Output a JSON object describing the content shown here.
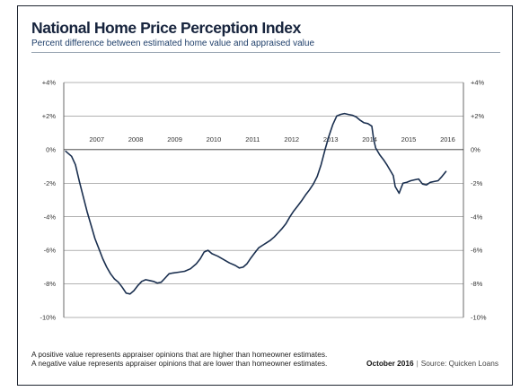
{
  "title": "National Home Price Perception Index",
  "subtitle": "Percent difference between estimated home value and appraised value",
  "footnote": {
    "line1": "A positive value represents appraiser opinions that are higher than homeowner estimates.",
    "line2": "A negative value represents appraiser opinions that are lower than homeowner estimates."
  },
  "credit": {
    "date": "October 2016",
    "separator": "|",
    "source": "Source: Quicken Loans"
  },
  "colors": {
    "line": "#1a2f4f",
    "title": "#17243d",
    "subtitle": "#1f3f6a",
    "grid": "#555555"
  },
  "chart_data": {
    "type": "line",
    "title": "National Home Price Perception Index",
    "subtitle": "Percent difference between estimated home value and appraised value",
    "xlabel": "",
    "ylabel": "",
    "xlim": [
      2006.5,
      2016.75
    ],
    "ylim": [
      -10,
      4
    ],
    "y_ticks": [
      4,
      2,
      0,
      -2,
      -4,
      -6,
      -8,
      -10
    ],
    "y_tick_labels": [
      "+4%",
      "+2%",
      "0%",
      "-2%",
      "-4%",
      "-6%",
      "-8%",
      "-10%"
    ],
    "x_tick_labels": [
      {
        "label": "2007",
        "x": 2007
      },
      {
        "label": "2008",
        "x": 2008
      },
      {
        "label": "2009",
        "x": 2009
      },
      {
        "label": "2010",
        "x": 2010
      },
      {
        "label": "2011",
        "x": 2011
      },
      {
        "label": "2012",
        "x": 2012
      },
      {
        "label": "2013",
        "x": 2013
      },
      {
        "label": "2014",
        "x": 2014
      },
      {
        "label": "2015",
        "x": 2015
      },
      {
        "label": "2016",
        "x": 2016
      }
    ],
    "grid": "horizontal",
    "legend": "none",
    "series": [
      {
        "points": [
          [
            2006.55,
            -0.1
          ],
          [
            2006.7,
            -0.4
          ],
          [
            2006.8,
            -0.9
          ],
          [
            2006.9,
            -1.9
          ],
          [
            2007.0,
            -2.8
          ],
          [
            2007.1,
            -3.7
          ],
          [
            2007.2,
            -4.5
          ],
          [
            2007.3,
            -5.3
          ],
          [
            2007.4,
            -5.9
          ],
          [
            2007.5,
            -6.5
          ],
          [
            2007.6,
            -7.0
          ],
          [
            2007.7,
            -7.4
          ],
          [
            2007.8,
            -7.7
          ],
          [
            2007.9,
            -7.9
          ],
          [
            2008.0,
            -8.2
          ],
          [
            2008.1,
            -8.55
          ],
          [
            2008.2,
            -8.6
          ],
          [
            2008.3,
            -8.4
          ],
          [
            2008.4,
            -8.1
          ],
          [
            2008.5,
            -7.85
          ],
          [
            2008.6,
            -7.75
          ],
          [
            2008.7,
            -7.8
          ],
          [
            2008.8,
            -7.85
          ],
          [
            2008.9,
            -7.95
          ],
          [
            2009.0,
            -7.9
          ],
          [
            2009.1,
            -7.65
          ],
          [
            2009.2,
            -7.4
          ],
          [
            2009.3,
            -7.35
          ],
          [
            2009.45,
            -7.3
          ],
          [
            2009.6,
            -7.25
          ],
          [
            2009.75,
            -7.1
          ],
          [
            2009.9,
            -6.8
          ],
          [
            2010.0,
            -6.5
          ],
          [
            2010.1,
            -6.1
          ],
          [
            2010.2,
            -6.0
          ],
          [
            2010.3,
            -6.2
          ],
          [
            2010.45,
            -6.35
          ],
          [
            2010.6,
            -6.55
          ],
          [
            2010.75,
            -6.75
          ],
          [
            2010.9,
            -6.9
          ],
          [
            2011.0,
            -7.05
          ],
          [
            2011.1,
            -7.0
          ],
          [
            2011.2,
            -6.8
          ],
          [
            2011.3,
            -6.45
          ],
          [
            2011.4,
            -6.15
          ],
          [
            2011.5,
            -5.85
          ],
          [
            2011.6,
            -5.7
          ],
          [
            2011.7,
            -5.55
          ],
          [
            2011.8,
            -5.4
          ],
          [
            2011.9,
            -5.2
          ],
          [
            2012.0,
            -4.95
          ],
          [
            2012.1,
            -4.7
          ],
          [
            2012.2,
            -4.4
          ],
          [
            2012.3,
            -4.0
          ],
          [
            2012.4,
            -3.65
          ],
          [
            2012.5,
            -3.35
          ],
          [
            2012.6,
            -3.05
          ],
          [
            2012.7,
            -2.7
          ],
          [
            2012.8,
            -2.4
          ],
          [
            2012.9,
            -2.05
          ],
          [
            2013.0,
            -1.6
          ],
          [
            2013.1,
            -0.9
          ],
          [
            2013.2,
            0.0
          ],
          [
            2013.3,
            0.8
          ],
          [
            2013.4,
            1.5
          ],
          [
            2013.5,
            2.0
          ],
          [
            2013.6,
            2.1
          ],
          [
            2013.7,
            2.15
          ],
          [
            2013.8,
            2.1
          ],
          [
            2013.9,
            2.05
          ],
          [
            2014.0,
            1.95
          ],
          [
            2014.1,
            1.75
          ],
          [
            2014.2,
            1.6
          ],
          [
            2014.3,
            1.55
          ],
          [
            2014.4,
            1.4
          ],
          [
            2014.45,
            0.6
          ],
          [
            2014.5,
            0.1
          ],
          [
            2014.6,
            -0.3
          ],
          [
            2014.7,
            -0.6
          ],
          [
            2014.8,
            -0.95
          ],
          [
            2014.9,
            -1.35
          ],
          [
            2014.95,
            -1.55
          ],
          [
            2015.0,
            -2.2
          ],
          [
            2015.1,
            -2.6
          ],
          [
            2015.15,
            -2.3
          ],
          [
            2015.2,
            -2.0
          ],
          [
            2015.3,
            -1.95
          ],
          [
            2015.4,
            -1.85
          ],
          [
            2015.5,
            -1.8
          ],
          [
            2015.6,
            -1.75
          ],
          [
            2015.7,
            -2.05
          ],
          [
            2015.8,
            -2.1
          ],
          [
            2015.9,
            -1.95
          ],
          [
            2016.0,
            -1.9
          ],
          [
            2016.1,
            -1.85
          ],
          [
            2016.2,
            -1.6
          ],
          [
            2016.3,
            -1.3
          ]
        ]
      }
    ]
  }
}
